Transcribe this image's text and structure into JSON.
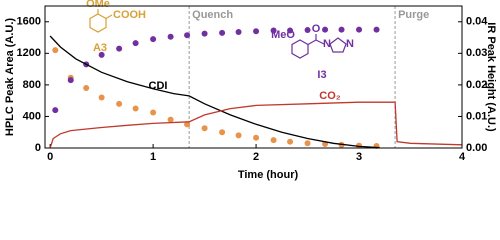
{
  "chart_data": {
    "type": "combo",
    "xlabel": "Time (hour)",
    "ylabel": "HPLC Peak Area (A.U.)",
    "y2label": "IR Peak Height (A.U.)",
    "xlim": [
      -0.05,
      4
    ],
    "xticks": [
      0,
      1,
      2,
      3,
      4
    ],
    "ylim": [
      0,
      1800
    ],
    "yticks": [
      0,
      400,
      800,
      1200,
      1600
    ],
    "y2lim": [
      0,
      0.045
    ],
    "y2ticks": [
      {
        "value": 0,
        "label": "0.00"
      },
      {
        "value": 0.01,
        "label": "0.01"
      },
      {
        "value": 0.02,
        "label": "0.02"
      },
      {
        "value": 0.03,
        "label": "0.03"
      },
      {
        "value": 0.04,
        "label": "0.04"
      }
    ],
    "annotations": [
      {
        "text": "Quench",
        "x": 1.35
      },
      {
        "text": "Purge",
        "x": 3.35
      }
    ],
    "series": [
      {
        "name": "A3",
        "type": "scatter",
        "color": "#e8924a",
        "label_color": "#d9a036",
        "x": [
          0.05,
          0.2,
          0.35,
          0.5,
          0.67,
          0.83,
          1.0,
          1.17,
          1.33,
          1.5,
          1.67,
          1.83,
          2.0,
          2.17,
          2.33,
          2.5,
          2.67,
          2.83,
          3.0,
          3.17
        ],
        "values": [
          1240,
          890,
          760,
          640,
          560,
          500,
          450,
          360,
          300,
          250,
          200,
          160,
          130,
          100,
          80,
          60,
          50,
          40,
          30,
          25
        ]
      },
      {
        "name": "I3",
        "type": "scatter",
        "color": "#7030a0",
        "label_color": "#7030a0",
        "x": [
          0.05,
          0.2,
          0.35,
          0.5,
          0.67,
          0.83,
          1.0,
          1.17,
          1.33,
          1.5,
          1.67,
          1.83,
          2.0,
          2.17,
          2.33,
          2.5,
          2.67,
          2.83,
          3.0,
          3.17
        ],
        "values": [
          480,
          860,
          1060,
          1180,
          1260,
          1330,
          1380,
          1410,
          1430,
          1450,
          1460,
          1470,
          1480,
          1490,
          1490,
          1495,
          1500,
          1500,
          1500,
          1500
        ]
      },
      {
        "name": "CDI",
        "type": "line",
        "color": "#000000",
        "label_color": "#000000",
        "x": [
          0,
          0.1,
          0.25,
          0.5,
          0.75,
          1.0,
          1.2,
          1.35,
          1.5,
          1.75,
          2.0,
          2.25,
          2.5,
          2.75,
          3.0,
          3.2
        ],
        "values": [
          1420,
          1280,
          1130,
          960,
          840,
          750,
          690,
          660,
          560,
          420,
          300,
          200,
          120,
          60,
          20,
          5
        ]
      },
      {
        "name": "CO₂",
        "type": "line",
        "axis": "y2",
        "color": "#c0392b",
        "label_color": "#c0392b",
        "x": [
          0,
          0.03,
          0.1,
          0.2,
          0.5,
          0.75,
          1.0,
          1.35,
          1.5,
          1.75,
          2.0,
          2.5,
          3.0,
          3.35,
          3.37,
          3.5,
          4.0
        ],
        "values": [
          0,
          0.003,
          0.0045,
          0.0055,
          0.0065,
          0.0072,
          0.0078,
          0.0083,
          0.0105,
          0.0125,
          0.0135,
          0.014,
          0.0145,
          0.0145,
          0.002,
          0.0015,
          0.001
        ]
      }
    ]
  },
  "structure_labels": {
    "a3": [
      "OMe",
      "COOH"
    ],
    "i3": [
      "MeO",
      "O",
      "N",
      "N"
    ]
  }
}
